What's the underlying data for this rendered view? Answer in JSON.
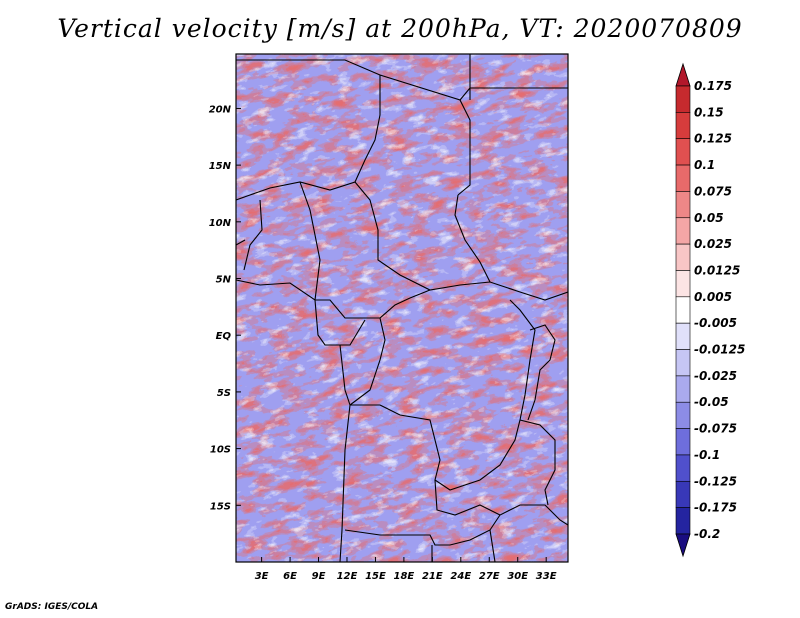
{
  "title": "Vertical velocity [m/s] at 200hPa, VT: 2020070809",
  "footer": "GrADS: IGES/COLA",
  "chart_data": {
    "type": "heatmap",
    "variable": "Vertical velocity",
    "units": "m/s",
    "level": "200hPa",
    "valid_time": "2020070809",
    "x_ticks": [
      "3E",
      "6E",
      "9E",
      "12E",
      "15E",
      "18E",
      "21E",
      "24E",
      "27E",
      "30E",
      "33E"
    ],
    "x_values": [
      3,
      6,
      9,
      12,
      15,
      18,
      21,
      24,
      27,
      30,
      33
    ],
    "y_ticks": [
      "20N",
      "15N",
      "10N",
      "5N",
      "EQ",
      "5S",
      "10S",
      "15S"
    ],
    "y_values": [
      20,
      15,
      10,
      5,
      0,
      -5,
      -10,
      -15
    ],
    "xlim": [
      0.3,
      35.3
    ],
    "ylim": [
      -20,
      24.8
    ],
    "colorbar": {
      "labels": [
        "0.175",
        "0.15",
        "0.125",
        "0.1",
        "0.075",
        "0.05",
        "0.025",
        "0.0125",
        "0.005",
        "-0.005",
        "-0.0125",
        "-0.025",
        "-0.05",
        "-0.075",
        "-0.1",
        "-0.125",
        "-0.175",
        "-0.2"
      ],
      "colors": [
        "#b2182b",
        "#c62a2e",
        "#d63c3c",
        "#e05050",
        "#e86a6a",
        "#ee8787",
        "#f4a6a6",
        "#f8c6c6",
        "#fce4e4",
        "#ffffff",
        "#e0e0fa",
        "#c6c6f4",
        "#aaaaee",
        "#8c8ce6",
        "#6e6edc",
        "#5050cc",
        "#3838b8",
        "#2424a0",
        "#1a0d80"
      ]
    }
  }
}
